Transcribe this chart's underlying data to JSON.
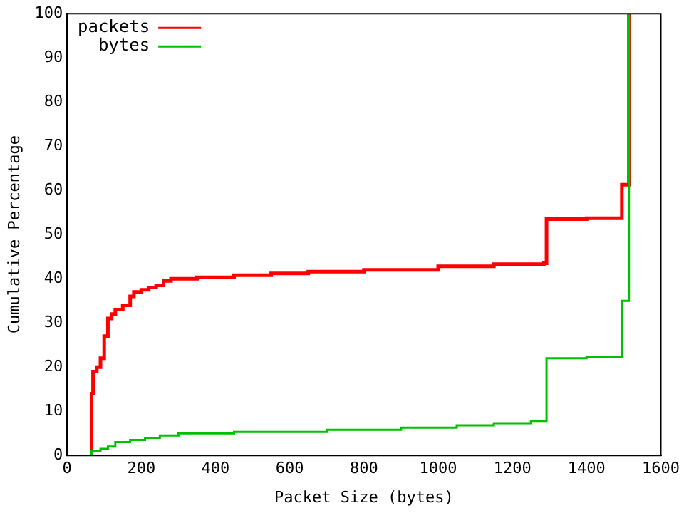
{
  "chart_data": {
    "type": "step",
    "xlabel": "Packet Size (bytes)",
    "ylabel": "Cumulative Percentage",
    "xlim": [
      0,
      1600
    ],
    "xticks": [
      0,
      200,
      400,
      600,
      800,
      1000,
      1200,
      1400,
      1600
    ],
    "ylim": [
      0,
      100
    ],
    "yticks": [
      0,
      10,
      20,
      30,
      40,
      50,
      60,
      70,
      80,
      90,
      100
    ],
    "grid": false,
    "legend": "top left",
    "series": [
      {
        "name": "packets",
        "color": "#ff0000",
        "x": [
          64,
          66,
          70,
          80,
          90,
          100,
          110,
          120,
          130,
          150,
          170,
          180,
          200,
          220,
          240,
          260,
          280,
          350,
          450,
          550,
          650,
          800,
          1000,
          1150,
          1285,
          1292,
          1400,
          1495,
          1514
        ],
        "values": [
          0,
          14,
          19,
          20,
          22,
          27,
          31,
          32,
          33,
          34,
          36,
          37,
          37.5,
          38,
          38.5,
          39.5,
          40,
          40.3,
          40.8,
          41.2,
          41.6,
          42,
          42.8,
          43.3,
          43.5,
          53.5,
          53.7,
          61.3,
          100
        ]
      },
      {
        "name": "bytes",
        "color": "#00c000",
        "x": [
          64,
          66,
          90,
          110,
          130,
          170,
          210,
          250,
          300,
          450,
          700,
          900,
          1050,
          1150,
          1250,
          1292,
          1400,
          1495,
          1514
        ],
        "values": [
          0,
          1,
          1.5,
          2,
          3,
          3.5,
          4,
          4.5,
          5,
          5.3,
          5.8,
          6.3,
          6.8,
          7.3,
          7.8,
          22,
          22.3,
          35,
          100
        ]
      }
    ]
  }
}
